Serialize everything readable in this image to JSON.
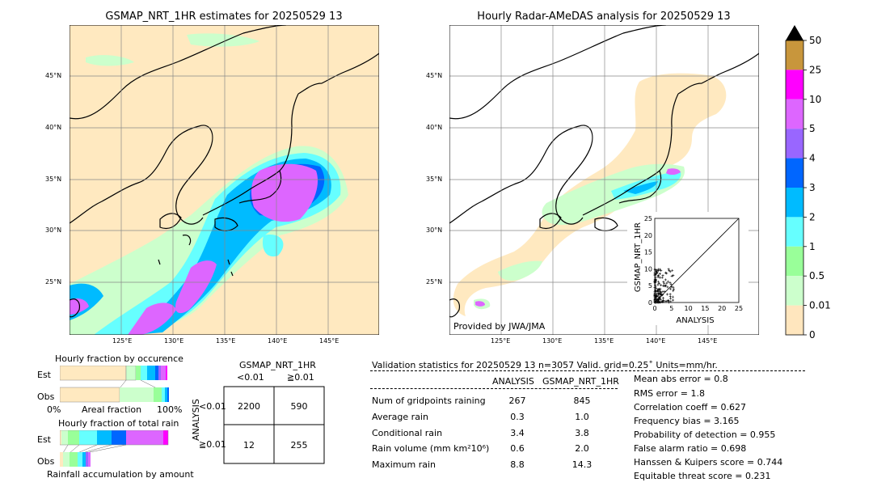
{
  "maps": {
    "left_title": "GSMAP_NRT_1HR estimates for 20250529 13",
    "right_title": "Hourly Radar-AMeDAS analysis for 20250529 13",
    "lat_labels": [
      "45°N",
      "40°N",
      "35°N",
      "30°N",
      "25°N"
    ],
    "lon_labels": [
      "125°E",
      "130°E",
      "135°E",
      "140°E",
      "145°E"
    ],
    "credit": "Provided by JWA/JMA"
  },
  "colorbar": {
    "labels": [
      "50",
      "25",
      "10",
      "5",
      "4",
      "3",
      "2",
      "1",
      "0.5",
      "0.01",
      "0"
    ],
    "colors": [
      "#c8963c",
      "#ff00ff",
      "#dd66ff",
      "#9966ff",
      "#0066ff",
      "#00bbff",
      "#66ffff",
      "#99ff99",
      "#ccffcc",
      "#ffe6be"
    ],
    "over_color": "#000000"
  },
  "scatter": {
    "xlabel": "ANALYSIS",
    "ylabel": "GSMAP_NRT_1HR",
    "ticks": [
      "0",
      "5",
      "10",
      "15",
      "20",
      "25"
    ],
    "range": [
      0,
      25
    ]
  },
  "fraction": {
    "occ_title": "Hourly fraction by occurence",
    "total_title": "Hourly fraction of total rain",
    "est_label": "Est",
    "obs_label": "Obs",
    "axis_left": "0%",
    "axis_mid": "Areal fraction",
    "axis_right": "100%",
    "bottom_caption": "Rainfall accumulation by amount"
  },
  "contingency": {
    "title": "GSMAP_NRT_1HR",
    "col_lt": "<0.01",
    "col_ge": "≧0.01",
    "row_axis": "ANALYSIS",
    "row_lt": "<0.01",
    "row_ge": "≧0.01",
    "c11": "2200",
    "c12": "590",
    "c21": "12",
    "c22": "255"
  },
  "validation": {
    "header": "Validation statistics for 20250529 13  n=3057 Valid. grid=0.25˚ Units=mm/hr.",
    "col_analysis": "ANALYSIS",
    "col_gsmap": "GSMAP_NRT_1HR",
    "rows": [
      {
        "label": "Num of gridpoints raining",
        "analysis": "267",
        "gsmap": "845"
      },
      {
        "label": "Average rain",
        "analysis": "0.3",
        "gsmap": "1.0"
      },
      {
        "label": "Conditional rain",
        "analysis": "3.4",
        "gsmap": "3.8"
      },
      {
        "label": "Rain volume (mm km²10⁶)",
        "analysis": "0.6",
        "gsmap": "2.0"
      },
      {
        "label": "Maximum rain",
        "analysis": "8.8",
        "gsmap": "14.3"
      }
    ],
    "scores": [
      "Mean abs error =    0.8",
      "RMS error =    1.8",
      "Correlation coeff =  0.627",
      "Frequency bias =  3.165",
      "Probability of detection =  0.955",
      "False alarm ratio =  0.698",
      "Hanssen & Kuipers score =  0.744",
      "Equitable threat score =  0.231"
    ]
  }
}
